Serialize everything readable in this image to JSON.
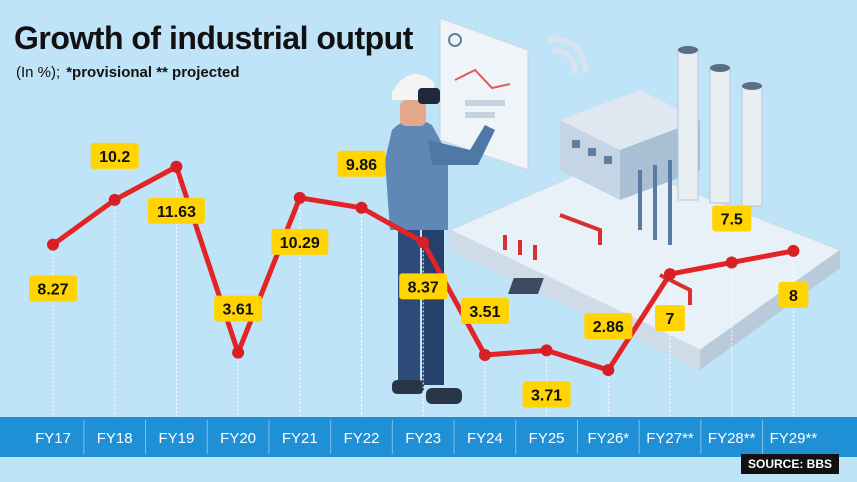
{
  "header": {
    "title": "Growth of industrial output",
    "unit": "(In %);",
    "notes": "*provisional ** projected"
  },
  "source": "SOURCE: BBS",
  "colors": {
    "background": "#bfe3f7",
    "line": "#e32326",
    "label_fill": "#ffd400",
    "axis_band": "#1f8fd6"
  },
  "illustration": "person-with-vr-headset-and-factory-illustration",
  "chart_data": {
    "type": "line",
    "title": "Growth of industrial output",
    "ylabel": "(In %)",
    "categories": [
      "FY17",
      "FY18",
      "FY19",
      "FY20",
      "FY21",
      "FY22",
      "FY23",
      "FY24",
      "FY25",
      "FY26*",
      "FY27**",
      "FY28**",
      "FY29**"
    ],
    "series": [
      {
        "values": [
          8.27,
          10.2,
          11.63,
          3.61,
          10.29,
          9.86,
          8.37,
          3.51,
          3.71,
          2.86,
          7,
          7.5,
          8
        ],
        "labels": [
          "8.27",
          "10.2",
          "11.63",
          "3.61",
          "10.29",
          "9.86",
          "8.37",
          "3.51",
          "3.71",
          "2.86",
          "7",
          "7.5",
          "8"
        ]
      }
    ],
    "label_positions": [
      "below",
      "above",
      "below",
      "above",
      "below",
      "above",
      "below",
      "above",
      "below",
      "above",
      "below",
      "above",
      "below"
    ],
    "ylim": [
      2,
      13
    ],
    "grid": false,
    "legend": "none"
  }
}
